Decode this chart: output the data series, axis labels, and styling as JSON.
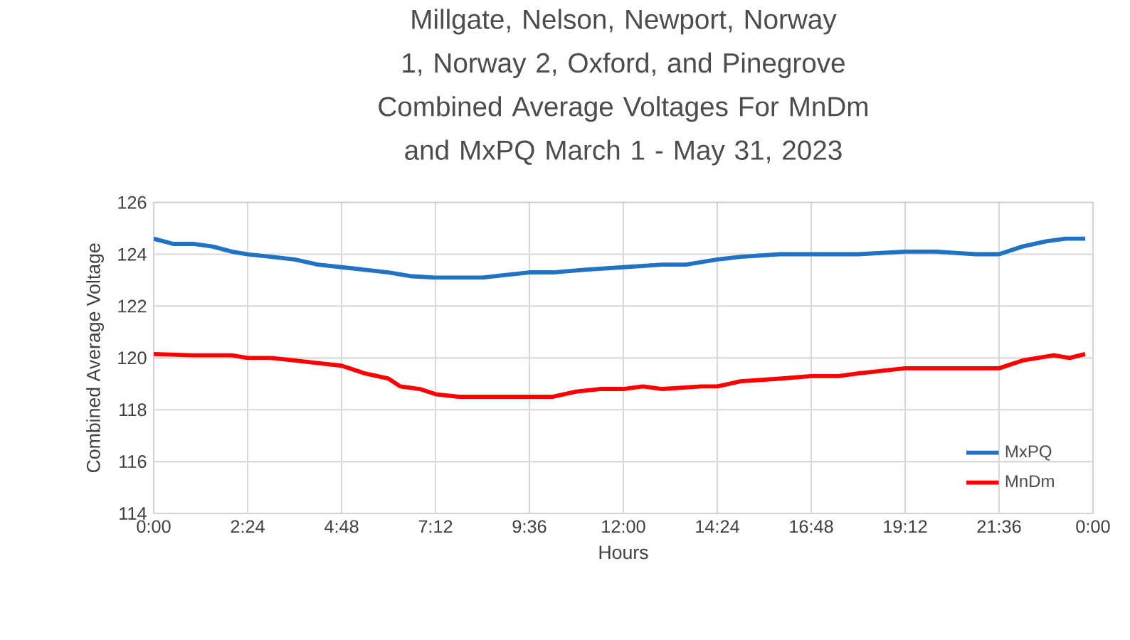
{
  "chart_data": {
    "type": "line",
    "title": "Millgate, Nelson, Newport, Norway 1, Norway 2, Oxford, and Pinegrove Combined Average Voltages For MnDm and MxPQ March 1 - May 31, 2023",
    "xlabel": "Hours",
    "ylabel": "Combined Average Voltage",
    "xlim": [
      0,
      24
    ],
    "ylim": [
      114,
      126
    ],
    "xticks": [
      {
        "value": 0,
        "label": "0:00"
      },
      {
        "value": 2.4,
        "label": "2:24"
      },
      {
        "value": 4.8,
        "label": "4:48"
      },
      {
        "value": 7.2,
        "label": "7:12"
      },
      {
        "value": 9.6,
        "label": "9:36"
      },
      {
        "value": 12,
        "label": "12:00"
      },
      {
        "value": 14.4,
        "label": "14:24"
      },
      {
        "value": 16.8,
        "label": "16:48"
      },
      {
        "value": 19.2,
        "label": "19:12"
      },
      {
        "value": 21.6,
        "label": "21:36"
      },
      {
        "value": 24,
        "label": "0:00"
      }
    ],
    "yticks": [
      114,
      116,
      118,
      120,
      122,
      124,
      126
    ],
    "grid": true,
    "legend": "bottom right",
    "marker": "none",
    "line_style": "solid",
    "series": [
      {
        "name": "MxPQ",
        "color": "#1f72c4",
        "x": [
          0,
          0.5,
          1,
          1.5,
          2,
          2.4,
          3,
          3.6,
          4.2,
          4.8,
          5.4,
          6,
          6.6,
          7.2,
          7.8,
          8.4,
          9,
          9.6,
          10.2,
          11,
          12,
          13,
          13.6,
          14.4,
          15,
          16,
          16.8,
          17.5,
          18,
          19.2,
          20,
          21,
          21.6,
          22.2,
          22.8,
          23.3,
          23.8
        ],
        "values": [
          124.6,
          124.4,
          124.4,
          124.3,
          124.1,
          124.0,
          123.9,
          123.8,
          123.6,
          123.5,
          123.4,
          123.3,
          123.15,
          123.1,
          123.1,
          123.1,
          123.2,
          123.3,
          123.3,
          123.4,
          123.5,
          123.6,
          123.6,
          123.8,
          123.9,
          124.0,
          124.0,
          124.0,
          124.0,
          124.1,
          124.1,
          124.0,
          124.0,
          124.3,
          124.5,
          124.6,
          124.6
        ]
      },
      {
        "name": "MnDm",
        "color": "#ff0000",
        "x": [
          0,
          1,
          2,
          2.4,
          3,
          3.6,
          4.2,
          4.8,
          5.4,
          6,
          6.3,
          6.8,
          7.2,
          7.8,
          8.4,
          9,
          9.6,
          10.2,
          10.8,
          11.4,
          12,
          12.5,
          13,
          14,
          14.4,
          15,
          16,
          16.8,
          17.5,
          18,
          19.2,
          20,
          21,
          21.6,
          22.2,
          23,
          23.4,
          23.8
        ],
        "values": [
          120.15,
          120.1,
          120.1,
          120.0,
          120.0,
          119.9,
          119.8,
          119.7,
          119.4,
          119.2,
          118.9,
          118.8,
          118.6,
          118.5,
          118.5,
          118.5,
          118.5,
          118.5,
          118.7,
          118.8,
          118.8,
          118.9,
          118.8,
          118.9,
          118.9,
          119.1,
          119.2,
          119.3,
          119.3,
          119.4,
          119.6,
          119.6,
          119.6,
          119.6,
          119.9,
          120.1,
          120.0,
          120.15
        ]
      }
    ]
  }
}
